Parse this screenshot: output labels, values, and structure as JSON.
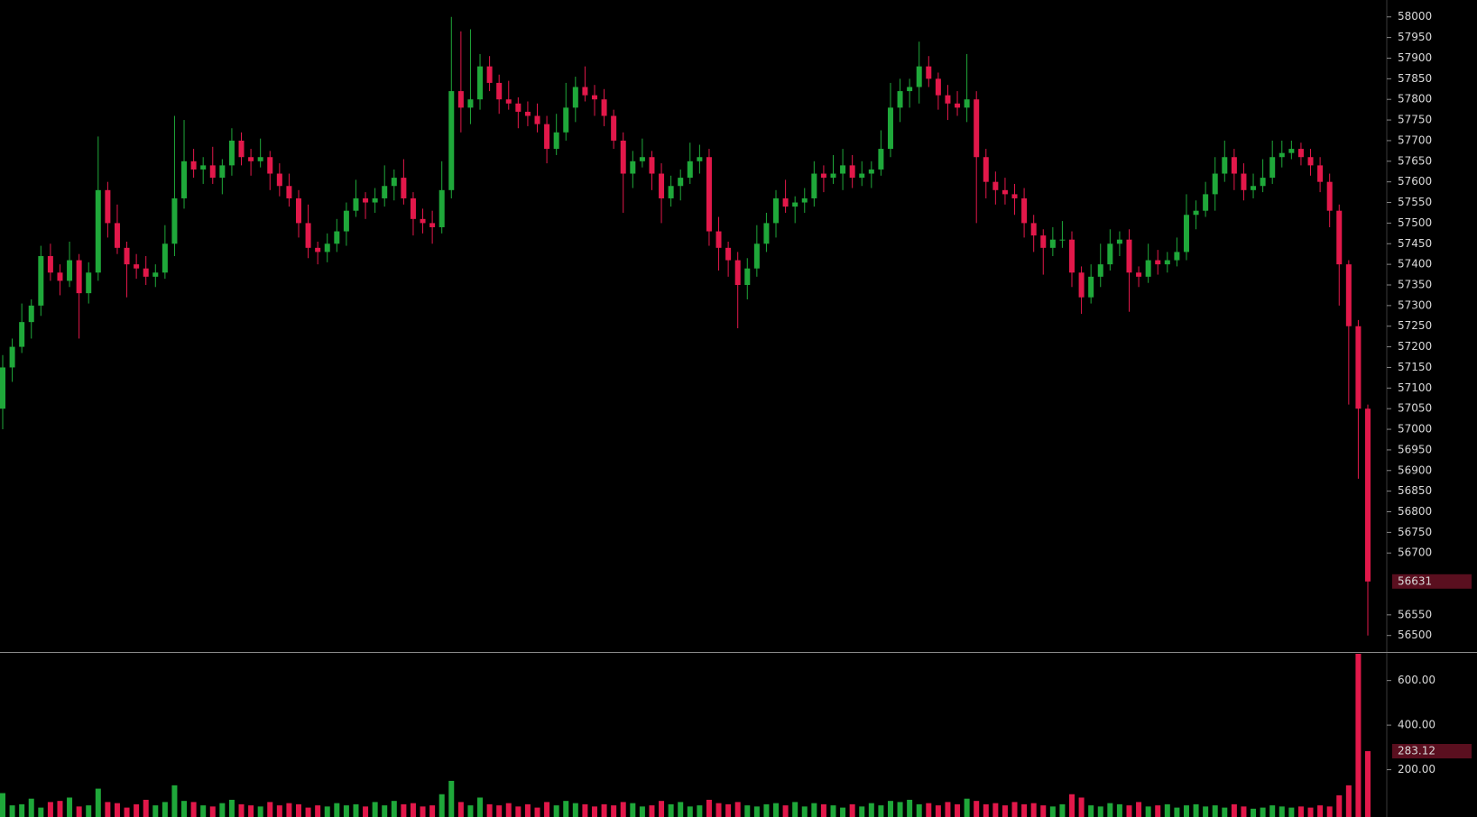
{
  "chart_data": {
    "type": "candlestick",
    "up_color": "#1fa83a",
    "down_color": "#e2184a",
    "ylim": [
      56460,
      58041
    ],
    "yticks": [
      56500,
      56550,
      56700,
      56750,
      56800,
      56850,
      56900,
      56950,
      57000,
      57050,
      57100,
      57150,
      57200,
      57250,
      57300,
      57350,
      57400,
      57450,
      57500,
      57550,
      57600,
      57650,
      57700,
      57750,
      57800,
      57850,
      57900,
      57950,
      58000
    ],
    "volume_ylim": [
      0,
      720
    ],
    "volume_yticks": [
      {
        "value": 200,
        "label": "200.00"
      },
      {
        "value": 400,
        "label": "400.00"
      },
      {
        "value": 600,
        "label": "600.00"
      }
    ],
    "open": [
      57050,
      57150,
      57200,
      57260,
      57300,
      57420,
      57380,
      57360,
      57410,
      57330,
      57380,
      57580,
      57500,
      57440,
      57400,
      57390,
      57370,
      57380,
      57450,
      57560,
      57650,
      57630,
      57640,
      57610,
      57640,
      57700,
      57660,
      57650,
      57660,
      57620,
      57590,
      57560,
      57500,
      57440,
      57430,
      57450,
      57480,
      57530,
      57560,
      57550,
      57560,
      57590,
      57610,
      57560,
      57510,
      57500,
      57490,
      57580,
      57820,
      57780,
      57800,
      57880,
      57840,
      57800,
      57790,
      57770,
      57760,
      57740,
      57680,
      57720,
      57780,
      57830,
      57810,
      57800,
      57760,
      57700,
      57620,
      57650,
      57660,
      57620,
      57560,
      57590,
      57610,
      57650,
      57660,
      57480,
      57440,
      57410,
      57350,
      57390,
      57450,
      57500,
      57560,
      57540,
      57550,
      57560,
      57620,
      57610,
      57620,
      57640,
      57610,
      57620,
      57630,
      57680,
      57780,
      57820,
      57830,
      57880,
      57850,
      57810,
      57790,
      57780,
      57800,
      57660,
      57600,
      57580,
      57570,
      57560,
      57500,
      57470,
      57440,
      57460,
      57460,
      57380,
      57320,
      57370,
      57400,
      57450,
      57460,
      57380,
      57370,
      57410,
      57400,
      57410,
      57430,
      57520,
      57530,
      57570,
      57620,
      57660,
      57620,
      57580,
      57590,
      57610,
      57660,
      57670,
      57680,
      57660,
      57640,
      57600,
      57530,
      57400,
      57250,
      57050
    ],
    "high": [
      57180,
      57220,
      57305,
      57315,
      57445,
      57450,
      57400,
      57455,
      57425,
      57405,
      57710,
      57600,
      57545,
      57455,
      57425,
      57420,
      57400,
      57495,
      57760,
      57750,
      57680,
      57660,
      57685,
      57655,
      57730,
      57720,
      57680,
      57705,
      57675,
      57645,
      57620,
      57580,
      57545,
      57455,
      57475,
      57510,
      57550,
      57605,
      57575,
      57585,
      57640,
      57630,
      57655,
      57575,
      57535,
      57530,
      57650,
      58000,
      57965,
      57970,
      57910,
      57905,
      57860,
      57845,
      57805,
      57795,
      57790,
      57760,
      57765,
      57840,
      57855,
      57880,
      57835,
      57825,
      57775,
      57720,
      57675,
      57705,
      57675,
      57645,
      57615,
      57630,
      57695,
      57690,
      57680,
      57515,
      57455,
      57430,
      57415,
      57495,
      57525,
      57580,
      57605,
      57565,
      57585,
      57650,
      57640,
      57665,
      57680,
      57665,
      57650,
      57650,
      57725,
      57840,
      57850,
      57850,
      57940,
      57905,
      57865,
      57835,
      57820,
      57910,
      57820,
      57680,
      57625,
      57610,
      57595,
      57585,
      57520,
      57485,
      57490,
      57505,
      57480,
      57395,
      57400,
      57450,
      57485,
      57480,
      57485,
      57395,
      57450,
      57435,
      57430,
      57465,
      57570,
      57555,
      57600,
      57660,
      57700,
      57680,
      57645,
      57620,
      57655,
      57700,
      57700,
      57700,
      57695,
      57680,
      57660,
      57620,
      57545,
      57410,
      57265,
      57060
    ],
    "low": [
      57000,
      57115,
      57185,
      57220,
      57275,
      57360,
      57325,
      57345,
      57220,
      57305,
      57360,
      57465,
      57425,
      57320,
      57365,
      57350,
      57345,
      57365,
      57420,
      57535,
      57610,
      57595,
      57595,
      57570,
      57615,
      57640,
      57615,
      57635,
      57580,
      57565,
      57540,
      57465,
      57415,
      57400,
      57405,
      57430,
      57445,
      57515,
      57510,
      57525,
      57540,
      57555,
      57545,
      57470,
      57475,
      57450,
      57475,
      57560,
      57720,
      57740,
      57775,
      57820,
      57765,
      57775,
      57730,
      57735,
      57720,
      57645,
      57665,
      57700,
      57745,
      57795,
      57760,
      57735,
      57680,
      57525,
      57585,
      57635,
      57580,
      57500,
      57540,
      57555,
      57595,
      57620,
      57445,
      57385,
      57370,
      57245,
      57315,
      57370,
      57430,
      57465,
      57525,
      57500,
      57525,
      57540,
      57575,
      57595,
      57580,
      57585,
      57590,
      57585,
      57615,
      57660,
      57745,
      57780,
      57790,
      57830,
      57775,
      57750,
      57760,
      57745,
      57500,
      57560,
      57545,
      57545,
      57520,
      57465,
      57430,
      57375,
      57420,
      57440,
      57345,
      57280,
      57305,
      57345,
      57385,
      57420,
      57285,
      57345,
      57355,
      57375,
      57380,
      57395,
      57410,
      57485,
      57515,
      57530,
      57600,
      57580,
      57555,
      57560,
      57575,
      57595,
      57635,
      57655,
      57640,
      57615,
      57575,
      57490,
      57300,
      57060,
      56880,
      56500
    ],
    "close": [
      57150,
      57200,
      57260,
      57300,
      57420,
      57380,
      57360,
      57410,
      57330,
      57380,
      57580,
      57500,
      57440,
      57400,
      57390,
      57370,
      57380,
      57450,
      57560,
      57650,
      57630,
      57640,
      57610,
      57640,
      57700,
      57660,
      57650,
      57660,
      57620,
      57590,
      57560,
      57500,
      57440,
      57430,
      57450,
      57480,
      57530,
      57560,
      57550,
      57560,
      57590,
      57610,
      57560,
      57510,
      57500,
      57490,
      57580,
      57820,
      57780,
      57800,
      57880,
      57840,
      57800,
      57790,
      57770,
      57760,
      57740,
      57680,
      57720,
      57780,
      57830,
      57810,
      57800,
      57760,
      57700,
      57620,
      57650,
      57660,
      57620,
      57560,
      57590,
      57610,
      57650,
      57660,
      57480,
      57440,
      57410,
      57350,
      57390,
      57450,
      57500,
      57560,
      57540,
      57550,
      57560,
      57620,
      57610,
      57620,
      57640,
      57610,
      57620,
      57630,
      57680,
      57780,
      57820,
      57830,
      57880,
      57850,
      57810,
      57790,
      57780,
      57800,
      57660,
      57600,
      57580,
      57570,
      57560,
      57500,
      57470,
      57440,
      57460,
      57460,
      57380,
      57320,
      57370,
      57400,
      57450,
      57460,
      57380,
      57370,
      57410,
      57400,
      57410,
      57430,
      57520,
      57530,
      57570,
      57620,
      57660,
      57620,
      57580,
      57590,
      57610,
      57660,
      57670,
      57680,
      57660,
      57640,
      57600,
      57530,
      57400,
      57250,
      57050,
      56631
    ],
    "volume": [
      95,
      40,
      45,
      70,
      30,
      55,
      60,
      75,
      35,
      40,
      115,
      55,
      50,
      30,
      45,
      65,
      40,
      55,
      130,
      60,
      55,
      40,
      35,
      50,
      65,
      45,
      40,
      35,
      55,
      40,
      50,
      45,
      30,
      40,
      35,
      50,
      40,
      45,
      35,
      55,
      40,
      60,
      45,
      50,
      35,
      40,
      90,
      150,
      55,
      40,
      75,
      45,
      40,
      50,
      35,
      45,
      30,
      55,
      40,
      60,
      50,
      45,
      35,
      45,
      40,
      55,
      50,
      35,
      40,
      60,
      45,
      55,
      35,
      40,
      65,
      50,
      45,
      55,
      40,
      35,
      45,
      50,
      40,
      55,
      35,
      50,
      45,
      40,
      30,
      45,
      35,
      50,
      40,
      60,
      55,
      65,
      45,
      50,
      40,
      55,
      45,
      70,
      60,
      45,
      50,
      40,
      55,
      45,
      50,
      40,
      35,
      45,
      90,
      75,
      40,
      35,
      50,
      45,
      40,
      55,
      35,
      40,
      45,
      30,
      40,
      45,
      35,
      40,
      30,
      45,
      35,
      25,
      30,
      40,
      35,
      30,
      35,
      30,
      40,
      35,
      85,
      130,
      720,
      283.12
    ]
  }
}
